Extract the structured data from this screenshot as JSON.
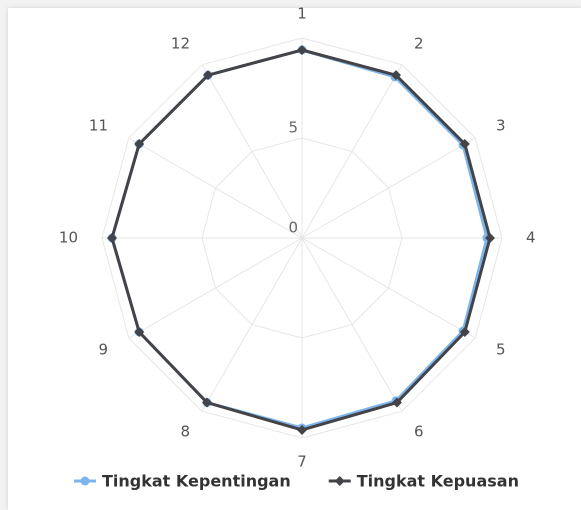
{
  "chart_data": {
    "type": "radar",
    "categories": [
      "1",
      "2",
      "3",
      "4",
      "5",
      "6",
      "7",
      "8",
      "9",
      "10",
      "11",
      "12"
    ],
    "series": [
      {
        "name": "Tingkat Kepentingan",
        "color": "#7cb5ec",
        "marker": "circle",
        "values": [
          9.4,
          9.3,
          9.3,
          9.25,
          9.3,
          9.4,
          9.5,
          9.5,
          9.4,
          9.5,
          9.4,
          9.4
        ]
      },
      {
        "name": "Tingkat Kepuasan",
        "color": "#434348",
        "marker": "diamond",
        "values": [
          9.4,
          9.4,
          9.4,
          9.4,
          9.4,
          9.5,
          9.6,
          9.5,
          9.4,
          9.5,
          9.4,
          9.4
        ]
      }
    ],
    "ylim": [
      0,
      10
    ],
    "yticks": [
      0,
      5
    ],
    "grid": true,
    "legend": "bottom"
  }
}
